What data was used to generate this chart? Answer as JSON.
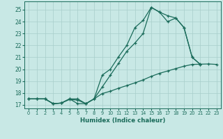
{
  "xlabel": "Humidex (Indice chaleur)",
  "xlim": [
    -0.5,
    23.5
  ],
  "ylim": [
    16.7,
    25.7
  ],
  "xticks": [
    0,
    1,
    2,
    3,
    4,
    5,
    6,
    7,
    8,
    9,
    10,
    11,
    12,
    13,
    14,
    15,
    16,
    17,
    18,
    19,
    20,
    21,
    22,
    23
  ],
  "yticks": [
    17,
    18,
    19,
    20,
    21,
    22,
    23,
    24,
    25
  ],
  "bg_color": "#c8e8e5",
  "line_color": "#1a6b5a",
  "grid_color": "#a8ceca",
  "line1_x": [
    0,
    1,
    2,
    3,
    4,
    5,
    6,
    7,
    8,
    9,
    10,
    11,
    12,
    13,
    14,
    15,
    16,
    17,
    18,
    19,
    20,
    21
  ],
  "line1_y": [
    17.5,
    17.5,
    17.5,
    17.1,
    17.15,
    17.5,
    17.5,
    17.1,
    17.5,
    19.5,
    20.0,
    21.05,
    22.0,
    23.5,
    24.1,
    25.2,
    24.8,
    24.5,
    24.3,
    23.5,
    21.0,
    20.4
  ],
  "line2_x": [
    0,
    1,
    2,
    3,
    4,
    5,
    6,
    7,
    8,
    9,
    10,
    11,
    12,
    13,
    14,
    15,
    16,
    17,
    18,
    19,
    20,
    21
  ],
  "line2_y": [
    17.5,
    17.5,
    17.5,
    17.1,
    17.15,
    17.5,
    17.1,
    17.1,
    17.5,
    18.5,
    19.5,
    20.5,
    21.5,
    22.2,
    23.0,
    25.2,
    24.8,
    24.0,
    24.3,
    23.5,
    21.0,
    20.4
  ],
  "line3_x": [
    0,
    1,
    2,
    3,
    4,
    5,
    6,
    7,
    8,
    9,
    10,
    11,
    12,
    13,
    14,
    15,
    16,
    17,
    18,
    19,
    20,
    21,
    22,
    23
  ],
  "line3_y": [
    17.5,
    17.5,
    17.5,
    17.1,
    17.15,
    17.45,
    17.4,
    17.1,
    17.5,
    17.95,
    18.15,
    18.4,
    18.62,
    18.85,
    19.1,
    19.4,
    19.65,
    19.85,
    20.05,
    20.25,
    20.4,
    20.42,
    20.44,
    20.4
  ]
}
